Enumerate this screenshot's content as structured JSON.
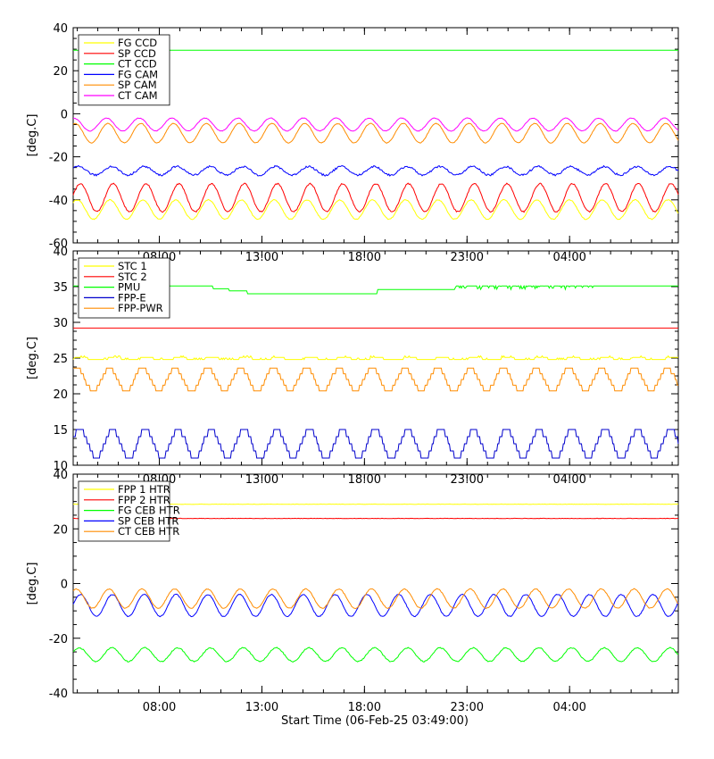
{
  "xlabel": "Start Time (06-Feb-25 03:49:00)",
  "chart_data": [
    {
      "type": "line",
      "ylabel": "[deg.C]",
      "ylim": [
        -60,
        40
      ],
      "yticks": [
        "40",
        "20",
        "0",
        "-20",
        "-40",
        "-60"
      ],
      "xticks": [
        "08:00",
        "13:00",
        "18:00",
        "23:00",
        "04:00"
      ],
      "xrange_hours": [
        0,
        29.5
      ],
      "xtick_hours": [
        4.2,
        9.2,
        14.2,
        19.2,
        24.2
      ],
      "legend_position": "top-left",
      "series": [
        {
          "name": "FG CCD",
          "color": "#ffff00",
          "shape": "sine",
          "mean": -44.5,
          "amp": 4.5,
          "period": 1.6,
          "phase": 0.8,
          "noise": 0.4
        },
        {
          "name": "SP CCD",
          "color": "#ff0000",
          "shape": "sine",
          "mean": -39,
          "amp": 6.5,
          "period": 1.6,
          "phase": 0.2,
          "noise": 0.6
        },
        {
          "name": "CT CCD",
          "color": "#00ff00",
          "shape": "flat",
          "mean": 29.5,
          "amp": 0,
          "period": 1,
          "phase": 0,
          "noise": 0
        },
        {
          "name": "FG CAM",
          "color": "#0000ff",
          "shape": "sine",
          "mean": -26.5,
          "amp": 2,
          "period": 1.6,
          "phase": 0.5,
          "noise": 0.9
        },
        {
          "name": "SP CAM",
          "color": "#ff8c00",
          "shape": "sine",
          "mean": -9,
          "amp": 4.5,
          "period": 1.6,
          "phase": 1.2,
          "noise": 0.3
        },
        {
          "name": "CT CAM",
          "color": "#ff00ff",
          "shape": "sine",
          "mean": -5,
          "amp": 3,
          "period": 1.6,
          "phase": 1.5,
          "noise": 0.3
        }
      ]
    },
    {
      "type": "line",
      "ylabel": "[deg.C]",
      "ylim": [
        10,
        40
      ],
      "yticks": [
        "40",
        "35",
        "30",
        "25",
        "20",
        "15",
        "10"
      ],
      "xticks": [
        "08:00",
        "13:00",
        "18:00",
        "23:00",
        "04:00"
      ],
      "xrange_hours": [
        0,
        29.5
      ],
      "xtick_hours": [
        4.2,
        9.2,
        14.2,
        19.2,
        24.2
      ],
      "legend_position": "top-left",
      "series": [
        {
          "name": "STC 1",
          "color": "#ffff00",
          "shape": "square",
          "mean": 24.8,
          "amp": 0.3,
          "period": 1.6,
          "phase": 0,
          "noise": 0.2
        },
        {
          "name": "STC 2",
          "color": "#ff0000",
          "shape": "flat",
          "mean": 29.2,
          "amp": 0,
          "period": 1,
          "phase": 0,
          "noise": 0
        },
        {
          "name": "PMU",
          "color": "#00ff00",
          "shape": "pmu",
          "mean": 35.1,
          "amp": 0,
          "period": 1,
          "phase": 0,
          "noise": 0
        },
        {
          "name": "FPP-E",
          "color": "#0000cc",
          "shape": "steps",
          "mean": 13,
          "amp": 2,
          "period": 1.6,
          "phase": 0.3,
          "noise": 0
        },
        {
          "name": "FPP-PWR",
          "color": "#ff8c00",
          "shape": "steps",
          "mean": 22,
          "amp": 1.6,
          "period": 1.6,
          "phase": 0.9,
          "noise": 0
        }
      ]
    },
    {
      "type": "line",
      "ylabel": "[deg.C]",
      "ylim": [
        -40,
        40
      ],
      "yticks": [
        "40",
        "20",
        "0",
        "-20",
        "-40"
      ],
      "xticks": [
        "08:00",
        "13:00",
        "18:00",
        "23:00",
        "04:00"
      ],
      "xrange_hours": [
        0,
        29.5
      ],
      "xtick_hours": [
        4.2,
        9.2,
        14.2,
        19.2,
        24.2
      ],
      "legend_position": "top-left",
      "series": [
        {
          "name": "FPP 1 HTR",
          "color": "#ffff00",
          "shape": "flat",
          "mean": 29,
          "amp": 0,
          "period": 1,
          "phase": 0,
          "noise": 0.15
        },
        {
          "name": "FPP 2 HTR",
          "color": "#ff0000",
          "shape": "flat",
          "mean": 23.8,
          "amp": 0,
          "period": 1,
          "phase": 0,
          "noise": 0.15
        },
        {
          "name": "FG CEB HTR",
          "color": "#00ff00",
          "shape": "sine",
          "mean": -26,
          "amp": 2.5,
          "period": 1.6,
          "phase": 0.4,
          "noise": 0.4
        },
        {
          "name": "SP CEB HTR",
          "color": "#0000ff",
          "shape": "sine",
          "mean": -8,
          "amp": 4,
          "period": 1.55,
          "phase": 0.1,
          "noise": 0.3
        },
        {
          "name": "CT CEB HTR",
          "color": "#ff8c00",
          "shape": "sine",
          "mean": -5.5,
          "amp": 3.5,
          "period": 1.6,
          "phase": 1.0,
          "noise": 0.3
        }
      ]
    }
  ]
}
